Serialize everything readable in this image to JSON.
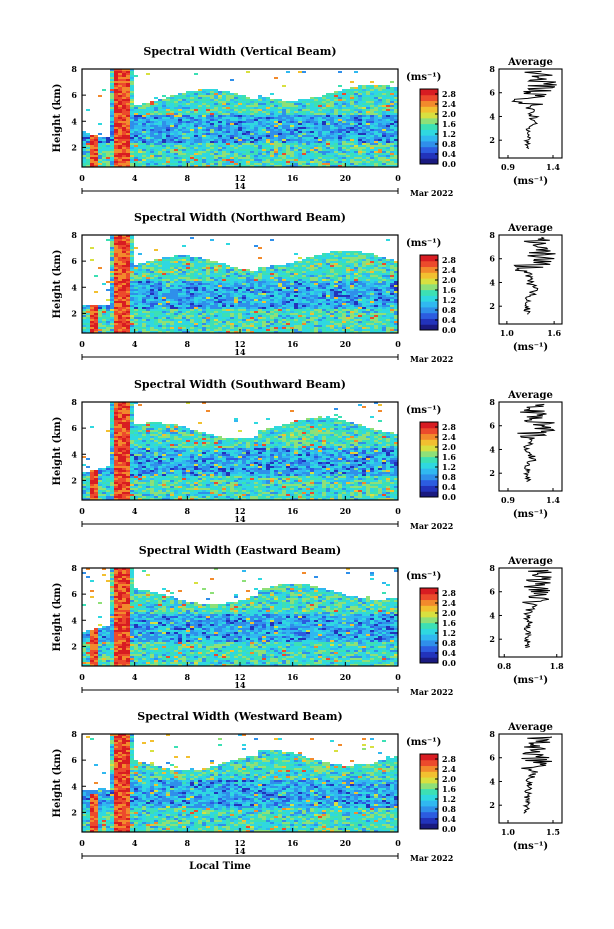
{
  "figure": {
    "x_label": "Local Time",
    "date_label": "Mar 2022",
    "day_label": "14",
    "colorbar_unit": "(ms⁻¹)",
    "average_title": "Average",
    "average_xlabel": "(ms⁻¹)",
    "colors": {
      "palette": [
        "#1a1a80",
        "#2233bb",
        "#2c5ce0",
        "#2f8fea",
        "#30b8f0",
        "#2fd8e0",
        "#3ce0b4",
        "#8ee078",
        "#d8e040",
        "#f2c030",
        "#f28a2c",
        "#ec4a2c",
        "#d81c22"
      ]
    }
  },
  "chart_data": [
    {
      "type": "heatmap",
      "title": "Spectral Width (Vertical Beam)",
      "xlabel": "",
      "ylabel": "Height (km)",
      "x_ticks": [
        "0",
        "4",
        "8",
        "12",
        "16",
        "20",
        "0"
      ],
      "xlim": [
        0,
        24
      ],
      "y_ticks": [
        "2",
        "4",
        "6",
        "8"
      ],
      "ylim": [
        0.5,
        8
      ],
      "colorbar_ticks": [
        "0.0",
        "0.4",
        "0.8",
        "1.2",
        "1.6",
        "2.0",
        "2.4",
        "2.8"
      ],
      "colorbar_range": [
        0,
        3.0
      ],
      "average": {
        "x_ticks": [
          "0.9",
          "1.4"
        ],
        "xlim": [
          0.8,
          1.5
        ],
        "y_ticks": [
          "2",
          "4",
          "6",
          "8"
        ],
        "ylim": [
          0.5,
          8
        ]
      }
    },
    {
      "type": "heatmap",
      "title": "Spectral Width (Northward Beam)",
      "xlabel": "",
      "ylabel": "Height (km)",
      "x_ticks": [
        "0",
        "4",
        "8",
        "12",
        "16",
        "20",
        "0"
      ],
      "xlim": [
        0,
        24
      ],
      "y_ticks": [
        "2",
        "4",
        "6",
        "8"
      ],
      "ylim": [
        0.5,
        8
      ],
      "colorbar_ticks": [
        "0.0",
        "0.4",
        "0.8",
        "1.2",
        "1.6",
        "2.0",
        "2.4",
        "2.8"
      ],
      "colorbar_range": [
        0,
        3.0
      ],
      "average": {
        "x_ticks": [
          "1.0",
          "1.6"
        ],
        "xlim": [
          0.9,
          1.7
        ],
        "y_ticks": [
          "2",
          "4",
          "6",
          "8"
        ],
        "ylim": [
          0.5,
          8
        ]
      }
    },
    {
      "type": "heatmap",
      "title": "Spectral Width (Southward Beam)",
      "xlabel": "",
      "ylabel": "Height (km)",
      "x_ticks": [
        "0",
        "4",
        "8",
        "12",
        "16",
        "20",
        "0"
      ],
      "xlim": [
        0,
        24
      ],
      "y_ticks": [
        "2",
        "4",
        "6",
        "8"
      ],
      "ylim": [
        0.5,
        8
      ],
      "colorbar_ticks": [
        "0.0",
        "0.4",
        "0.8",
        "1.2",
        "1.6",
        "2.0",
        "2.4",
        "2.8"
      ],
      "colorbar_range": [
        0,
        3.0
      ],
      "average": {
        "x_ticks": [
          "0.9",
          "1.4"
        ],
        "xlim": [
          0.8,
          1.5
        ],
        "y_ticks": [
          "2",
          "4",
          "6",
          "8"
        ],
        "ylim": [
          0.5,
          8
        ]
      }
    },
    {
      "type": "heatmap",
      "title": "Spectral Width (Eastward Beam)",
      "xlabel": "",
      "ylabel": "Height (km)",
      "x_ticks": [
        "0",
        "4",
        "8",
        "12",
        "16",
        "20",
        "0"
      ],
      "xlim": [
        0,
        24
      ],
      "y_ticks": [
        "2",
        "4",
        "6",
        "8"
      ],
      "ylim": [
        0.5,
        8
      ],
      "colorbar_ticks": [
        "0.0",
        "0.4",
        "0.8",
        "1.2",
        "1.6",
        "2.0",
        "2.4",
        "2.8"
      ],
      "colorbar_range": [
        0,
        3.0
      ],
      "average": {
        "x_ticks": [
          "0.8",
          "1.8"
        ],
        "xlim": [
          0.7,
          1.9
        ],
        "y_ticks": [
          "2",
          "4",
          "6",
          "8"
        ],
        "ylim": [
          0.5,
          8
        ]
      }
    },
    {
      "type": "heatmap",
      "title": "Spectral Width (Westward Beam)",
      "xlabel": "Local Time",
      "ylabel": "Height (km)",
      "x_ticks": [
        "0",
        "4",
        "8",
        "12",
        "16",
        "20",
        "0"
      ],
      "xlim": [
        0,
        24
      ],
      "y_ticks": [
        "2",
        "4",
        "6",
        "8"
      ],
      "ylim": [
        0.5,
        8
      ],
      "colorbar_ticks": [
        "0.0",
        "0.4",
        "0.8",
        "1.2",
        "1.6",
        "2.0",
        "2.4",
        "2.8"
      ],
      "colorbar_range": [
        0,
        3.0
      ],
      "average": {
        "x_ticks": [
          "1.0",
          "1.5"
        ],
        "xlim": [
          0.9,
          1.6
        ],
        "y_ticks": [
          "2",
          "4",
          "6",
          "8"
        ],
        "ylim": [
          0.5,
          8
        ]
      }
    }
  ]
}
